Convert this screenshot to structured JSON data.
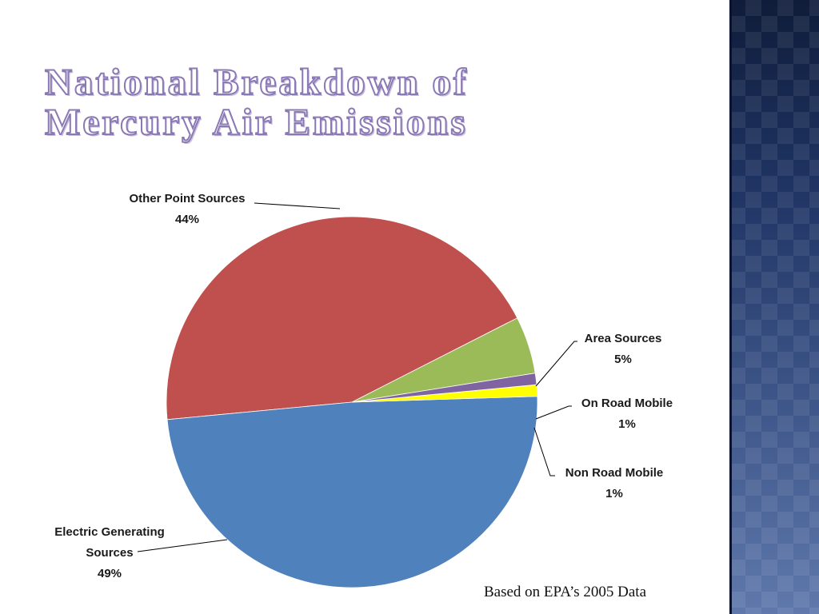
{
  "slide": {
    "title_line1": "National Breakdown of",
    "title_line2": "Mercury Air Emissions",
    "footnote": "Based on EPA’s 2005 Data"
  },
  "chart_data": {
    "type": "pie",
    "unit": "%",
    "slices": [
      {
        "name": "Area Sources",
        "value": 5,
        "color": "#9bbb59"
      },
      {
        "name": "Other Point Sources",
        "value": 44,
        "color": "#c0504d"
      },
      {
        "name": "Electric Generating Sources",
        "value": 49,
        "color": "#4f81bd"
      },
      {
        "name": "Non Road Mobile",
        "value": 1,
        "color": "#ffff00"
      },
      {
        "name": "On Road Mobile",
        "value": 1,
        "color": "#8064a2"
      }
    ],
    "labels": [
      {
        "slice": "Other Point Sources",
        "lines": [
          "Other Point Sources",
          "44%"
        ]
      },
      {
        "slice": "Area Sources",
        "lines": [
          "Area Sources",
          "5%"
        ]
      },
      {
        "slice": "On Road Mobile",
        "lines": [
          "On Road Mobile",
          "1%"
        ]
      },
      {
        "slice": "Non Road Mobile",
        "lines": [
          "Non Road Mobile",
          "1%"
        ]
      },
      {
        "slice": "Electric Generating Sources",
        "lines": [
          "Electric Generating",
          "Sources",
          "49%"
        ]
      }
    ]
  }
}
